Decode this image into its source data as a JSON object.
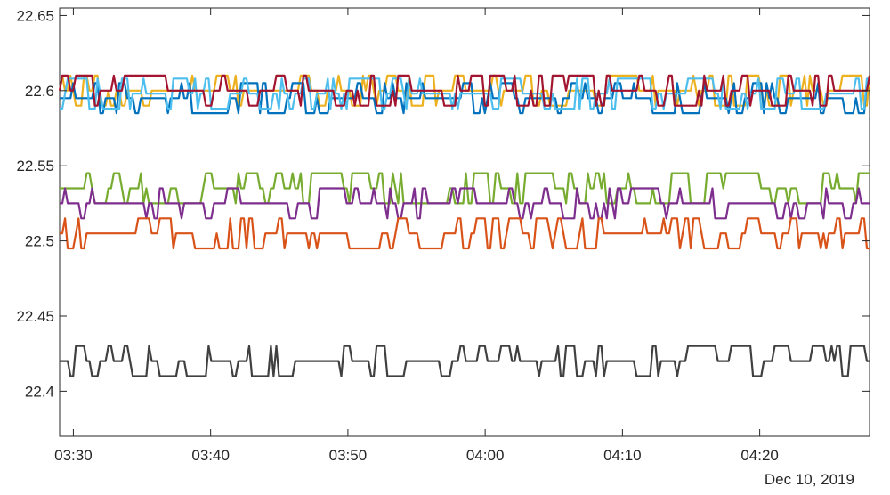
{
  "chart_data": {
    "type": "line",
    "title": "",
    "xlabel": "",
    "ylabel": "",
    "x_range": [
      "03:29",
      "04:28"
    ],
    "ylim": [
      22.37,
      22.655
    ],
    "x_ticks": [
      "03:30",
      "03:40",
      "03:50",
      "04:00",
      "04:10",
      "04:20"
    ],
    "y_ticks": [
      "22.4",
      "22.45",
      "22.5",
      "22.55",
      "22.6",
      "22.65"
    ],
    "date_label": "Dec 10, 2019",
    "grid": false,
    "legend": "none",
    "series": [
      {
        "color": "#EDB120",
        "base": 22.6,
        "spread": 0.01,
        "values_note": null
      },
      {
        "color": "#0072BD",
        "base": 22.595,
        "spread": 0.01,
        "values_note": null
      },
      {
        "color": "#4DBEEE",
        "base": 22.598,
        "spread": 0.015,
        "values_note": null
      },
      {
        "color": "#A2142F",
        "base": 22.6,
        "spread": 0.01,
        "values_note": null
      },
      {
        "color": "#77AC30",
        "base": 22.535,
        "spread": 0.015,
        "values_note": null
      },
      {
        "color": "#7E2F8E",
        "base": 22.525,
        "spread": 0.008,
        "values_note": null
      },
      {
        "color": "#D95319",
        "base": 22.505,
        "spread": 0.012,
        "values_note": null
      },
      {
        "color": "#404040",
        "base": 22.42,
        "spread": 0.012,
        "values_note": null
      }
    ]
  }
}
